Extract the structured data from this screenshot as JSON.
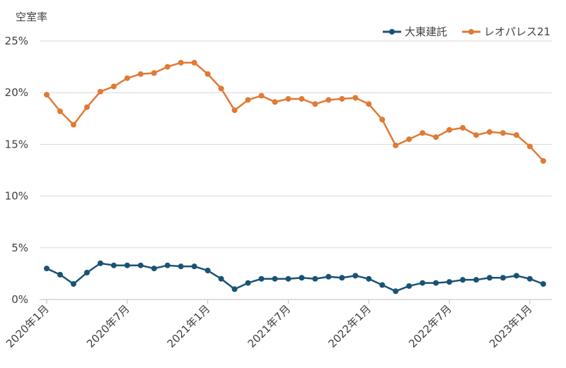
{
  "chart_data": {
    "type": "line",
    "ylabel": "空室率",
    "yticks": [
      "0%",
      "5%",
      "10%",
      "15%",
      "20%",
      "25%"
    ],
    "ylim": [
      0,
      25
    ],
    "y_unit": "%",
    "grid": "horizontal",
    "legend_position": "top-right",
    "x": [
      "2020-01",
      "2020-02",
      "2020-03",
      "2020-04",
      "2020-05",
      "2020-06",
      "2020-07",
      "2020-08",
      "2020-09",
      "2020-10",
      "2020-11",
      "2020-12",
      "2021-01",
      "2021-02",
      "2021-03",
      "2021-04",
      "2021-05",
      "2021-06",
      "2021-07",
      "2021-08",
      "2021-09",
      "2021-10",
      "2021-11",
      "2021-12",
      "2022-01",
      "2022-02",
      "2022-03",
      "2022-04",
      "2022-05",
      "2022-06",
      "2022-07",
      "2022-08",
      "2022-09",
      "2022-10",
      "2022-11",
      "2022-12",
      "2023-01",
      "2023-02"
    ],
    "xticks": [
      {
        "label": "2020年1月",
        "x": "2020-01"
      },
      {
        "label": "2020年7月",
        "x": "2020-07"
      },
      {
        "label": "2021年1月",
        "x": "2021-01"
      },
      {
        "label": "2021年7月",
        "x": "2021-07"
      },
      {
        "label": "2022年1月",
        "x": "2022-01"
      },
      {
        "label": "2022年7月",
        "x": "2022-07"
      },
      {
        "label": "2023年1月",
        "x": "2023-01"
      }
    ],
    "series": [
      {
        "name": "大東建託",
        "color": "#1a5276",
        "values": [
          3.0,
          2.4,
          1.5,
          2.6,
          3.5,
          3.3,
          3.3,
          3.3,
          3.0,
          3.3,
          3.2,
          3.2,
          2.8,
          2.0,
          1.0,
          1.6,
          2.0,
          2.0,
          2.0,
          2.1,
          2.0,
          2.2,
          2.1,
          2.3,
          2.0,
          1.4,
          0.8,
          1.3,
          1.6,
          1.6,
          1.7,
          1.9,
          1.9,
          2.1,
          2.1,
          2.3,
          2.0,
          1.5
        ]
      },
      {
        "name": "レオパレス21",
        "color": "#e07a35",
        "values": [
          19.8,
          18.2,
          16.9,
          18.6,
          20.1,
          20.6,
          21.4,
          21.8,
          21.9,
          22.5,
          22.9,
          22.9,
          21.8,
          20.4,
          18.3,
          19.3,
          19.7,
          19.1,
          19.4,
          19.4,
          18.9,
          19.3,
          19.4,
          19.5,
          18.9,
          17.4,
          14.9,
          15.5,
          16.1,
          15.7,
          16.4,
          16.6,
          15.9,
          16.2,
          16.1,
          15.9,
          14.8,
          13.4
        ]
      }
    ]
  }
}
